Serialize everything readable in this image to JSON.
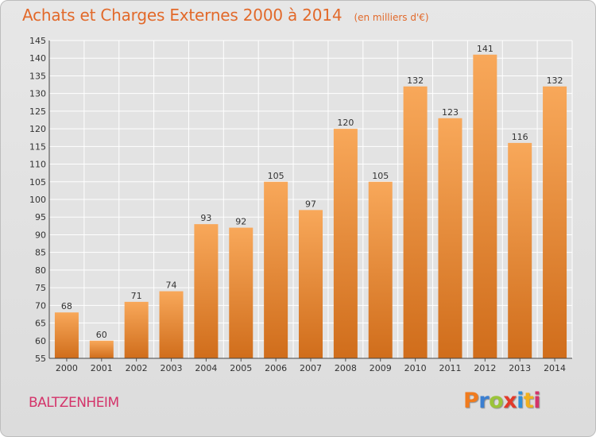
{
  "header": {
    "title": "Achats et Charges Externes 2000 à 2014",
    "subtitle": "(en milliers d'€)"
  },
  "footer": {
    "location": "BALTZENHEIM",
    "logo": "Proxiti"
  },
  "colors": {
    "title": "#e2692a",
    "location": "#d4346a",
    "bar_light": "#f8a85a",
    "bar_dark": "#d06d1b",
    "logo_letters": [
      "#f07b1e",
      "#3b7fd1",
      "#9bc43a",
      "#e23a2a",
      "#2f8fd8",
      "#f0b01e",
      "#d4346a"
    ]
  },
  "chart_data": {
    "type": "bar",
    "title": "Achats et Charges Externes 2000 à 2014",
    "subtitle": "(en milliers d'€)",
    "categories": [
      "2000",
      "2001",
      "2002",
      "2003",
      "2004",
      "2005",
      "2006",
      "2007",
      "2008",
      "2009",
      "2010",
      "2011",
      "2012",
      "2013",
      "2014"
    ],
    "values": [
      68,
      60,
      71,
      74,
      93,
      92,
      105,
      97,
      120,
      105,
      132,
      123,
      141,
      116,
      132
    ],
    "ylim": [
      55,
      145
    ],
    "yticks": [
      55,
      60,
      65,
      70,
      75,
      80,
      85,
      90,
      95,
      100,
      105,
      110,
      115,
      120,
      125,
      130,
      135,
      140,
      145
    ],
    "grid": true,
    "legend": "none"
  }
}
